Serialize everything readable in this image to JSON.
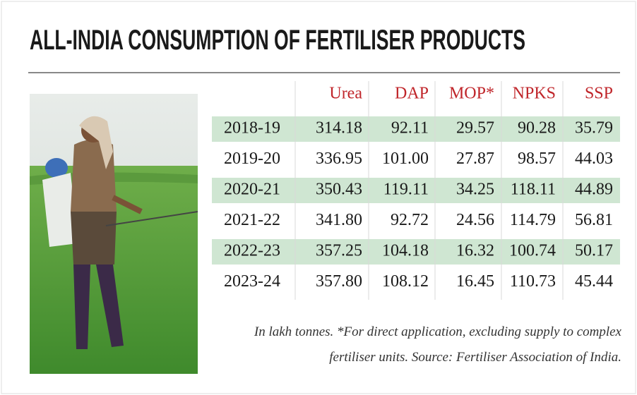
{
  "header": {
    "title": "ALL-INDIA CONSUMPTION OF FERTILISER PRODUCTS"
  },
  "table": {
    "columns": [
      "Urea",
      "DAP",
      "MOP*",
      "NPKS",
      "SSP"
    ],
    "rows": [
      {
        "year": "2018-19",
        "values": [
          "314.18",
          "92.11",
          "29.57",
          "90.28",
          "35.79"
        ]
      },
      {
        "year": "2019-20",
        "values": [
          "336.95",
          "101.00",
          "27.87",
          "98.57",
          "44.03"
        ]
      },
      {
        "year": "2020-21",
        "values": [
          "350.43",
          "119.11",
          "34.25",
          "118.11",
          "44.89"
        ]
      },
      {
        "year": "2021-22",
        "values": [
          "341.80",
          "92.72",
          "24.56",
          "114.79",
          "56.81"
        ]
      },
      {
        "year": "2022-23",
        "values": [
          "357.25",
          "104.18",
          "16.32",
          "100.74",
          "50.17"
        ]
      },
      {
        "year": "2023-24",
        "values": [
          "357.80",
          "108.12",
          "16.45",
          "110.73",
          "45.44"
        ]
      }
    ]
  },
  "note": [
    "In lakh tonnes. *For direct application, excluding supply to complex",
    "fertiliser units.  Source: Fertiliser Association of India."
  ]
}
